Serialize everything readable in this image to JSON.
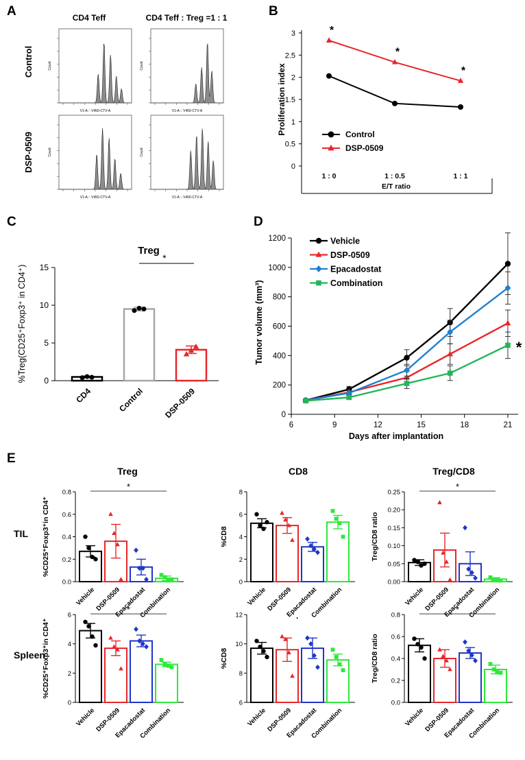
{
  "panels": {
    "A": {
      "letter": "A",
      "col_titles": [
        "CD4 Teff",
        "CD4 Teff : Treg =1 : 1"
      ],
      "row_titles": [
        "Control",
        "DSP-0509"
      ],
      "x_axis_label": "V1-A :: V450-CTV-A",
      "y_axis_label": "Count"
    },
    "B": {
      "letter": "B",
      "significance": "*",
      "legend": [
        "Control",
        "DSP-0509"
      ]
    },
    "C": {
      "letter": "C",
      "significance": "*",
      "sig_span": [
        "Control",
        "DSP-0509"
      ]
    },
    "D": {
      "letter": "D",
      "significance": "*"
    },
    "E": {
      "letter": "E",
      "col_titles": [
        "Treg",
        "CD8",
        "Treg/CD8"
      ],
      "row_titles": [
        "TIL",
        "Spleen"
      ],
      "significance": "*",
      "stray_mark": "."
    }
  },
  "chart_data": [
    {
      "id": "B",
      "type": "line",
      "title": "",
      "xlabel": "E/T ratio",
      "ylabel": "Proliferation index",
      "categories": [
        "1 : 0",
        "1 : 0.5",
        "1 : 1"
      ],
      "ylim": [
        0,
        3
      ],
      "yticks": [
        0,
        0.5,
        1,
        1.5,
        2,
        2.5,
        3
      ],
      "ytick_labels": [
        "0",
        "0.5",
        "1",
        "1.5",
        "2",
        "2.5",
        "3"
      ],
      "series": [
        {
          "name": "Control",
          "color": "#000000",
          "marker": "circle",
          "values": [
            2.03,
            1.41,
            1.33
          ]
        },
        {
          "name": "DSP-0509",
          "color": "#e8262a",
          "marker": "triangle",
          "values": [
            2.83,
            2.34,
            1.92
          ]
        }
      ],
      "annotations": [
        "*",
        "*",
        "*"
      ]
    },
    {
      "id": "C",
      "type": "bar",
      "title": "Treg",
      "ylabel": "%Treg(CD25⁺Foxp3⁺ in CD4⁺)",
      "categories": [
        "CD4",
        "Control",
        "DSP-0509"
      ],
      "bar_colors": [
        "#000000",
        "#a6a6a6",
        "#e8262a"
      ],
      "values": [
        0.5,
        9.5,
        4.1
      ],
      "errors": [
        0.1,
        0.25,
        0.5
      ],
      "points": [
        [
          0.4,
          0.55,
          0.45
        ],
        [
          9.3,
          9.6,
          9.5
        ],
        [
          3.5,
          4.0,
          4.5
        ]
      ],
      "ylim": [
        0,
        15
      ],
      "yticks": [
        0,
        5,
        10,
        15
      ],
      "ytick_labels": [
        "0",
        "5",
        "10",
        "15"
      ]
    },
    {
      "id": "D",
      "type": "line",
      "title": "",
      "xlabel": "Days after implantation",
      "ylabel": "Tumor volume (mm³)",
      "x": [
        7,
        10,
        14,
        17,
        21
      ],
      "xlim": [
        6,
        22
      ],
      "xticks": [
        6,
        9,
        12,
        15,
        18,
        21
      ],
      "xtick_labels": [
        "6",
        "9",
        "12",
        "15",
        "18",
        "21"
      ],
      "ylim": [
        0,
        1200
      ],
      "yticks": [
        0,
        200,
        400,
        600,
        800,
        1000,
        1200
      ],
      "ytick_labels": [
        "0",
        "200",
        "400",
        "600",
        "800",
        "1000",
        "1200"
      ],
      "series": [
        {
          "name": "Vehicle",
          "color": "#000000",
          "marker": "circle",
          "values": [
            95,
            170,
            385,
            625,
            1025
          ],
          "errors": [
            10,
            20,
            55,
            95,
            210
          ]
        },
        {
          "name": "DSP-0509",
          "color": "#e8262a",
          "marker": "triangle",
          "values": [
            95,
            150,
            250,
            410,
            620
          ],
          "errors": [
            10,
            15,
            40,
            70,
            90
          ]
        },
        {
          "name": "Epacadostat",
          "color": "#1f7fd0",
          "marker": "diamond",
          "values": [
            95,
            145,
            300,
            560,
            860
          ],
          "errors": [
            10,
            15,
            40,
            80,
            110
          ]
        },
        {
          "name": "Combination",
          "color": "#22b55a",
          "marker": "square",
          "values": [
            92,
            115,
            210,
            280,
            470
          ],
          "errors": [
            10,
            15,
            35,
            50,
            90
          ]
        }
      ]
    },
    {
      "id": "E-TIL-Treg",
      "type": "bar",
      "title": "Treg",
      "row": "TIL",
      "ylabel": "%CD25⁺Foxp3⁺in CD4⁺",
      "categories": [
        "Vehicle",
        "DSP-0509",
        "Epacadostat",
        "Combination"
      ],
      "values": [
        0.27,
        0.36,
        0.13,
        0.03
      ],
      "errors": [
        0.05,
        0.15,
        0.07,
        0.02
      ],
      "points": [
        [
          0.4,
          0.3,
          0.22,
          0.2
        ],
        [
          0.6,
          0.43,
          0.33,
          0.02
        ],
        [
          0.28,
          0.12,
          0.12,
          0.02
        ],
        [
          0.06,
          0.04,
          0.01,
          0.02
        ]
      ],
      "ylim": [
        0,
        0.8
      ],
      "yticks": [
        0,
        0.2,
        0.4,
        0.6,
        0.8
      ],
      "ytick_labels": [
        "0.0",
        "0.2",
        "0.4",
        "0.6",
        "0.8"
      ],
      "sig": true
    },
    {
      "id": "E-TIL-CD8",
      "type": "bar",
      "title": "CD8",
      "row": "TIL",
      "ylabel": "%CD8",
      "categories": [
        "Vehicle",
        "DSP-0509",
        "Epacadostat",
        "Combination"
      ],
      "values": [
        5.2,
        5.0,
        3.1,
        5.3
      ],
      "errors": [
        0.4,
        0.7,
        0.4,
        0.6
      ],
      "points": [
        [
          6.0,
          5.0,
          4.7,
          5.3
        ],
        [
          6.1,
          5.5,
          5.0,
          3.7
        ],
        [
          3.8,
          3.2,
          2.9,
          2.6
        ],
        [
          6.3,
          5.6,
          5.2,
          4.0
        ]
      ],
      "ylim": [
        0,
        8
      ],
      "yticks": [
        0,
        2,
        4,
        6,
        8
      ],
      "ytick_labels": [
        "0",
        "2",
        "4",
        "6",
        "8"
      ],
      "sig": false
    },
    {
      "id": "E-TIL-TregCD8",
      "type": "bar",
      "title": "Treg/CD8",
      "row": "TIL",
      "ylabel": "Treg/CD8 ratio",
      "categories": [
        "Vehicle",
        "DSP-0509",
        "Epacadostat",
        "Combination"
      ],
      "values": [
        0.053,
        0.088,
        0.05,
        0.007
      ],
      "errors": [
        0.008,
        0.047,
        0.033,
        0.004
      ],
      "points": [
        [
          0.06,
          0.055,
          0.045,
          0.05
        ],
        [
          0.22,
          0.08,
          0.055,
          0.005
        ],
        [
          0.15,
          0.035,
          0.025,
          0.01
        ],
        [
          0.012,
          0.006,
          0.004,
          0.003
        ]
      ],
      "ylim": [
        0,
        0.25
      ],
      "yticks": [
        0,
        0.05,
        0.1,
        0.15,
        0.2,
        0.25
      ],
      "ytick_labels": [
        "0.00",
        "0.05",
        "0.10",
        "0.15",
        "0.20",
        "0.25"
      ],
      "sig": true
    },
    {
      "id": "E-Spleen-Treg",
      "type": "bar",
      "title": "Treg",
      "row": "Spleen",
      "ylabel": "%CD25⁺Foxp3⁺in CD4⁺",
      "categories": [
        "Vehicle",
        "DSP-0509",
        "Epacadostat",
        "Combination"
      ],
      "values": [
        4.9,
        3.7,
        4.2,
        2.6
      ],
      "errors": [
        0.5,
        0.5,
        0.4,
        0.15
      ],
      "points": [
        [
          5.5,
          5.2,
          4.5,
          3.9
        ],
        [
          4.4,
          3.8,
          3.6,
          2.3
        ],
        [
          5.0,
          4.2,
          4.0,
          3.8
        ],
        [
          2.9,
          2.6,
          2.5,
          2.4
        ]
      ],
      "ylim": [
        0,
        6
      ],
      "yticks": [
        0,
        2,
        4,
        6
      ],
      "ytick_labels": [
        "0",
        "2",
        "4",
        "6"
      ],
      "sig": true
    },
    {
      "id": "E-Spleen-CD8",
      "type": "bar",
      "title": "CD8",
      "row": "Spleen",
      "ylabel": "%CD8",
      "categories": [
        "Vehicle",
        "DSP-0509",
        "Epacadostat",
        "Combination"
      ],
      "values": [
        9.7,
        9.6,
        9.7,
        8.9
      ],
      "errors": [
        0.4,
        0.8,
        0.7,
        0.4
      ],
      "points": [
        [
          10.2,
          9.8,
          9.5,
          9.1
        ],
        [
          10.5,
          10.3,
          9.4,
          7.8
        ],
        [
          10.4,
          10.0,
          9.2,
          8.4
        ],
        [
          9.6,
          9.1,
          8.6,
          8.2
        ]
      ],
      "ylim": [
        6,
        12
      ],
      "yticks": [
        6,
        8,
        10,
        12
      ],
      "ytick_labels": [
        "6",
        "8",
        "10",
        "12"
      ],
      "sig": false
    },
    {
      "id": "E-Spleen-TregCD8",
      "type": "bar",
      "title": "Treg/CD8",
      "row": "Spleen",
      "ylabel": "Treg/CD8 ratio",
      "categories": [
        "Vehicle",
        "DSP-0509",
        "Epacadostat",
        "Combination"
      ],
      "values": [
        0.52,
        0.4,
        0.45,
        0.3
      ],
      "errors": [
        0.06,
        0.08,
        0.05,
        0.04
      ],
      "points": [
        [
          0.58,
          0.53,
          0.5,
          0.4
        ],
        [
          0.48,
          0.42,
          0.38,
          0.3
        ],
        [
          0.55,
          0.47,
          0.43,
          0.38
        ],
        [
          0.35,
          0.3,
          0.28,
          0.27
        ]
      ],
      "ylim": [
        0,
        0.8
      ],
      "yticks": [
        0,
        0.2,
        0.4,
        0.6,
        0.8
      ],
      "ytick_labels": [
        "0.0",
        "0.2",
        "0.4",
        "0.6",
        "0.8"
      ],
      "sig": true
    }
  ]
}
